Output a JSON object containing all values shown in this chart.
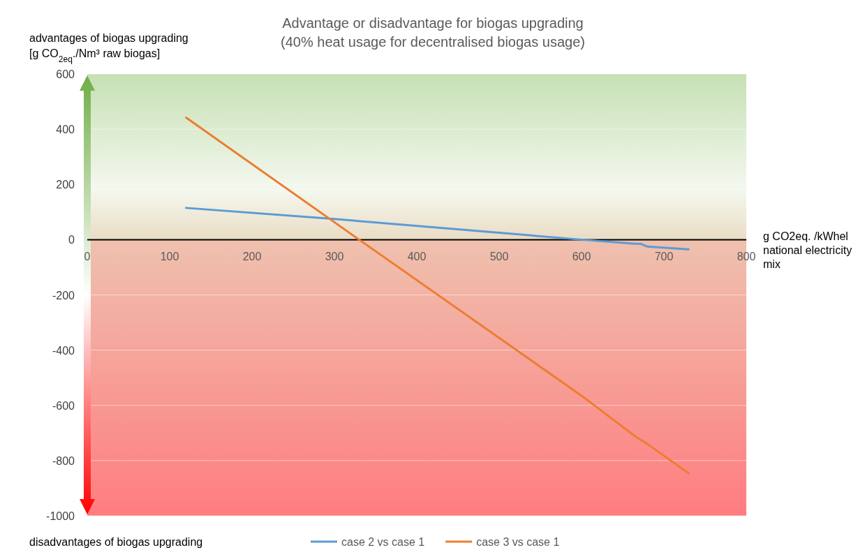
{
  "chart_data": {
    "type": "line",
    "title": "Advantage or disadvantage for biogas upgrading\n(40% heat usage for decentralised biogas usage)",
    "xlabel": "g CO2eq. /kWhel national electricity mix",
    "ylabel": "advantages of biogas upgrading\n[g CO$_{2eq}$./Nm³ raw biogas]",
    "annotations": [
      "disadvantages of biogas upgrading"
    ],
    "xlim": [
      0,
      800
    ],
    "xticks": [
      0,
      100,
      200,
      300,
      400,
      500,
      600,
      700,
      800
    ],
    "ylim": [
      -1000,
      600
    ],
    "yticks": [
      -1000,
      -800,
      -600,
      -400,
      -200,
      0,
      200,
      400,
      600
    ],
    "grid": "y",
    "legend": "bottom",
    "line_style": "solid",
    "marker": "none",
    "bands": [
      {
        "axis": "y",
        "from": 0,
        "to": 600,
        "color": "#c6e0b4"
      },
      {
        "axis": "y",
        "from": -1000,
        "to": 0,
        "color": "#ff7c80"
      }
    ],
    "series": [
      {
        "name": "case 2 vs case 1",
        "color": "#5b9bd5",
        "x": [
          120,
          300,
          600,
          665,
          672,
          680,
          730
        ],
        "values": [
          115,
          75,
          0,
          -15,
          -15,
          -25,
          -35
        ]
      },
      {
        "name": "case 3 vs case 1",
        "color": "#ed7d31",
        "x": [
          120,
          330,
          600,
          665,
          672,
          680,
          730
        ],
        "values": [
          442,
          0,
          -565,
          -712,
          -725,
          -740,
          -846
        ]
      }
    ]
  }
}
